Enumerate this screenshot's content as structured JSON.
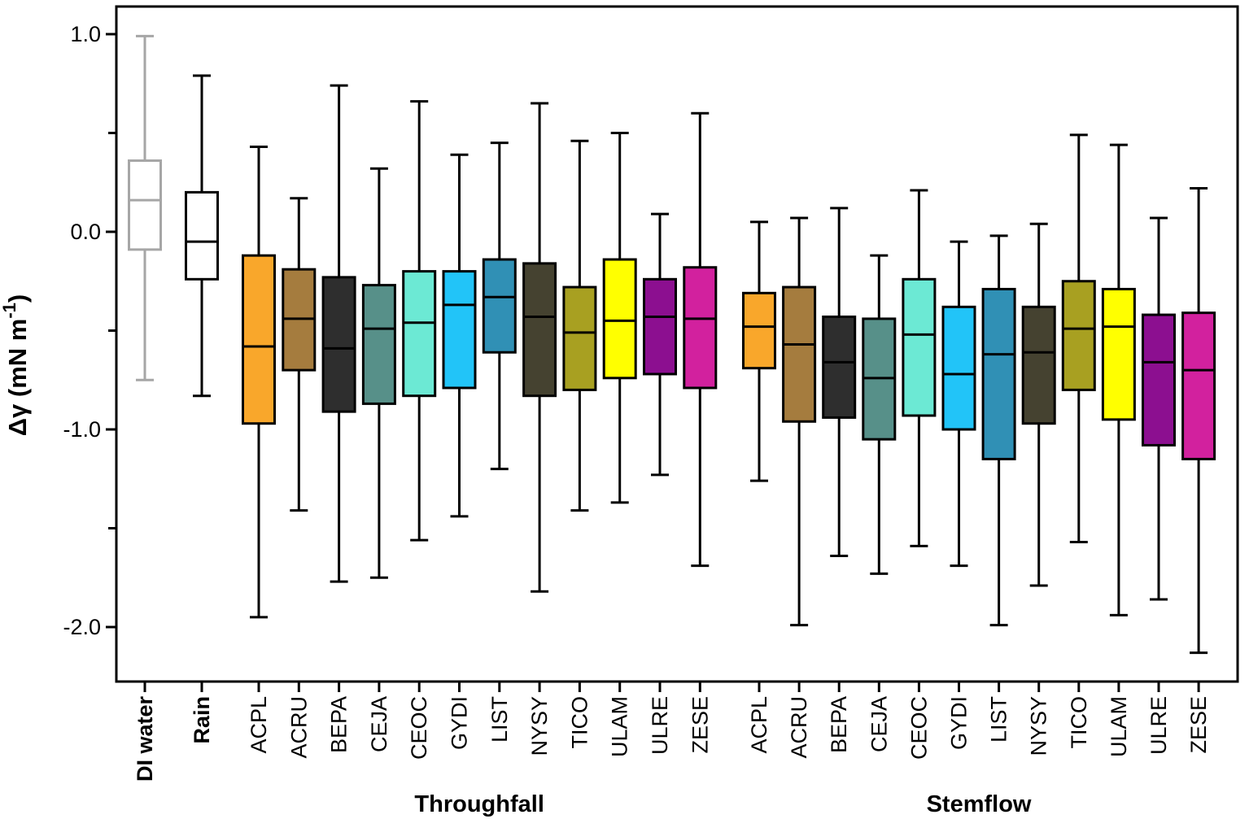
{
  "figure": {
    "background": "#ffffff",
    "axis_color": "#000000",
    "di_water_stroke": "#A6A6A6"
  },
  "chart_data": {
    "type": "boxplot",
    "title": "",
    "ylabel_main": "Δγ (mN m",
    "ylabel_sup": "-1",
    "ylabel_close": ")",
    "ylim": [
      -2.28,
      1.14
    ],
    "yticks_major": [
      1.0,
      0.0,
      -1.0,
      -2.0
    ],
    "ytick_labels": [
      "1.0",
      "0.0",
      "-1.0",
      "-2.0"
    ],
    "yticks_minor": [
      0.5,
      -0.5,
      -1.5
    ],
    "grid": false,
    "species_colors": {
      "ACPL": "#F9A72B",
      "ACRU": "#A57C3E",
      "BEPA": "#2E2E2E",
      "CEJA": "#579089",
      "CEOC": "#6CE9D4",
      "GYDI": "#22C4F8",
      "LIST": "#3090B5",
      "NYSY": "#454230",
      "TICO": "#A8A021",
      "ULAM": "#FFFF00",
      "ULRE": "#8C0F90",
      "ZESE": "#D2219E"
    },
    "groups": [
      {
        "name": "controls",
        "label": "",
        "boxes": [
          {
            "label": "DI water",
            "bold": true,
            "fill": "#FFFFFF",
            "stroke": "#A6A6A6",
            "whisker_low": -0.75,
            "q1": -0.09,
            "median": 0.16,
            "q3": 0.36,
            "whisker_high": 0.99
          },
          {
            "label": "Rain",
            "bold": true,
            "fill": "#FFFFFF",
            "stroke": "#000000",
            "whisker_low": -0.83,
            "q1": -0.24,
            "median": -0.05,
            "q3": 0.2,
            "whisker_high": 0.79
          }
        ]
      },
      {
        "name": "throughfall",
        "label": "Throughfall",
        "boxes": [
          {
            "label": "ACPL",
            "whisker_low": -1.95,
            "q1": -0.97,
            "median": -0.58,
            "q3": -0.12,
            "whisker_high": 0.43
          },
          {
            "label": "ACRU",
            "whisker_low": -1.41,
            "q1": -0.7,
            "median": -0.44,
            "q3": -0.19,
            "whisker_high": 0.17
          },
          {
            "label": "BEPA",
            "whisker_low": -1.77,
            "q1": -0.91,
            "median": -0.59,
            "q3": -0.23,
            "whisker_high": 0.74
          },
          {
            "label": "CEJA",
            "whisker_low": -1.75,
            "q1": -0.87,
            "median": -0.49,
            "q3": -0.27,
            "whisker_high": 0.32
          },
          {
            "label": "CEOC",
            "whisker_low": -1.56,
            "q1": -0.83,
            "median": -0.46,
            "q3": -0.2,
            "whisker_high": 0.66
          },
          {
            "label": "GYDI",
            "whisker_low": -1.44,
            "q1": -0.79,
            "median": -0.37,
            "q3": -0.2,
            "whisker_high": 0.39
          },
          {
            "label": "LIST",
            "whisker_low": -1.2,
            "q1": -0.61,
            "median": -0.33,
            "q3": -0.14,
            "whisker_high": 0.45
          },
          {
            "label": "NYSY",
            "whisker_low": -1.82,
            "q1": -0.83,
            "median": -0.43,
            "q3": -0.16,
            "whisker_high": 0.65
          },
          {
            "label": "TICO",
            "whisker_low": -1.41,
            "q1": -0.8,
            "median": -0.51,
            "q3": -0.28,
            "whisker_high": 0.46
          },
          {
            "label": "ULAM",
            "whisker_low": -1.37,
            "q1": -0.74,
            "median": -0.45,
            "q3": -0.14,
            "whisker_high": 0.5
          },
          {
            "label": "ULRE",
            "whisker_low": -1.23,
            "q1": -0.72,
            "median": -0.43,
            "q3": -0.24,
            "whisker_high": 0.09
          },
          {
            "label": "ZESE",
            "whisker_low": -1.69,
            "q1": -0.79,
            "median": -0.44,
            "q3": -0.18,
            "whisker_high": 0.6
          }
        ]
      },
      {
        "name": "stemflow",
        "label": "Stemflow",
        "boxes": [
          {
            "label": "ACPL",
            "whisker_low": -1.26,
            "q1": -0.69,
            "median": -0.48,
            "q3": -0.31,
            "whisker_high": 0.05
          },
          {
            "label": "ACRU",
            "whisker_low": -1.99,
            "q1": -0.96,
            "median": -0.57,
            "q3": -0.28,
            "whisker_high": 0.07
          },
          {
            "label": "BEPA",
            "whisker_low": -1.64,
            "q1": -0.94,
            "median": -0.66,
            "q3": -0.43,
            "whisker_high": 0.12
          },
          {
            "label": "CEJA",
            "whisker_low": -1.73,
            "q1": -1.05,
            "median": -0.74,
            "q3": -0.44,
            "whisker_high": -0.12
          },
          {
            "label": "CEOC",
            "whisker_low": -1.59,
            "q1": -0.93,
            "median": -0.52,
            "q3": -0.24,
            "whisker_high": 0.21
          },
          {
            "label": "GYDI",
            "whisker_low": -1.69,
            "q1": -1.0,
            "median": -0.72,
            "q3": -0.38,
            "whisker_high": -0.05
          },
          {
            "label": "LIST",
            "whisker_low": -1.99,
            "q1": -1.15,
            "median": -0.62,
            "q3": -0.29,
            "whisker_high": -0.02
          },
          {
            "label": "NYSY",
            "whisker_low": -1.79,
            "q1": -0.97,
            "median": -0.61,
            "q3": -0.38,
            "whisker_high": 0.04
          },
          {
            "label": "TICO",
            "whisker_low": -1.57,
            "q1": -0.8,
            "median": -0.49,
            "q3": -0.25,
            "whisker_high": 0.49
          },
          {
            "label": "ULAM",
            "whisker_low": -1.94,
            "q1": -0.95,
            "median": -0.48,
            "q3": -0.29,
            "whisker_high": 0.44
          },
          {
            "label": "ULRE",
            "whisker_low": -1.86,
            "q1": -1.08,
            "median": -0.66,
            "q3": -0.42,
            "whisker_high": 0.07
          },
          {
            "label": "ZESE",
            "whisker_low": -2.13,
            "q1": -1.15,
            "median": -0.7,
            "q3": -0.41,
            "whisker_high": 0.22
          }
        ]
      }
    ]
  }
}
